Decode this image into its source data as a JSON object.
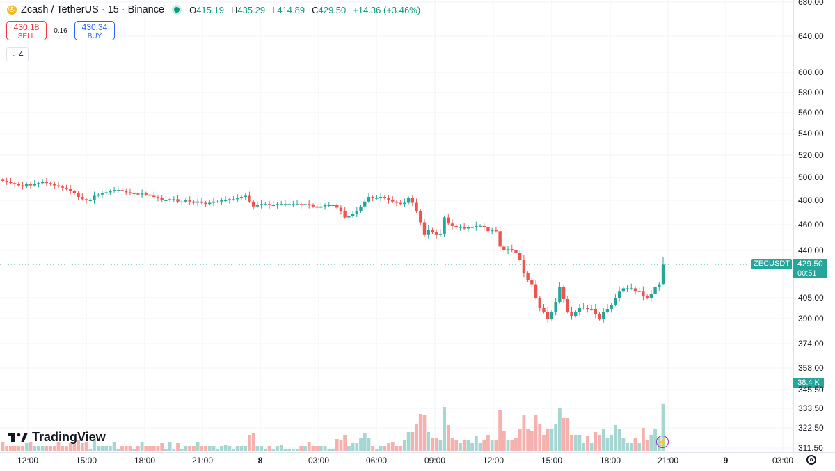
{
  "header": {
    "symbol_title": "Zcash / TetherUS · 15 · Binance",
    "open_label": "O",
    "open": "415.19",
    "high_label": "H",
    "high": "435.29",
    "low_label": "L",
    "low": "414.89",
    "close_label": "C",
    "close": "429.50",
    "change": "+14.36 (+3.46%)"
  },
  "trade": {
    "sell_price": "430.18",
    "sell_label": "SELL",
    "spread": "0.16",
    "buy_price": "430.34",
    "buy_label": "BUY"
  },
  "indicators_count": "4",
  "price_tag": {
    "name": "ZECUSDT",
    "price": "429.50",
    "countdown": "00:51"
  },
  "volume_tag": "38.4 K",
  "logo_text": "TradingView",
  "colors": {
    "up": "#26a69a",
    "down": "#ef5350",
    "up_volume": "#a5d6d2",
    "down_volume": "#f5b1ae",
    "grid": "#f0f3fa",
    "accent": "#089981"
  },
  "icons": {
    "flash": "lightning-icon",
    "settings": "settings-icon",
    "symbol": "zcash-logo-icon"
  },
  "chart_data": {
    "type": "candlestick",
    "price_scale_ticks": [
      "680.00",
      "640.00",
      "600.00",
      "580.00",
      "560.00",
      "540.00",
      "520.00",
      "500.00",
      "480.00",
      "460.00",
      "440.00",
      "405.00",
      "390.00",
      "374.00",
      "358.00",
      "345.50",
      "333.50",
      "322.50",
      "311.50"
    ],
    "time_ticks": [
      "12:00",
      "15:00",
      "18:00",
      "21:00",
      "8",
      "03:00",
      "06:00",
      "09:00",
      "12:00",
      "15:00",
      "18:00",
      "21:00",
      "9",
      "03:00"
    ],
    "series": [
      {
        "name": "ZECUSDT",
        "close": [
          497,
          496,
          495,
          494,
          493,
          492,
          494,
          493,
          494,
          495,
          496,
          495,
          494,
          493,
          492,
          491,
          490,
          488,
          486,
          483,
          481,
          480,
          480,
          484,
          485,
          486,
          487,
          488,
          489,
          489,
          488,
          487,
          486,
          486,
          485,
          486,
          485,
          484,
          483,
          482,
          480,
          480,
          481,
          481,
          479,
          479,
          480,
          479,
          478,
          479,
          478,
          477,
          478,
          479,
          479,
          480,
          480,
          481,
          481,
          482,
          483,
          484,
          479,
          475,
          476,
          477,
          477,
          476,
          476,
          477,
          477,
          477,
          477,
          477,
          477,
          476,
          477,
          476,
          475,
          474,
          475,
          476,
          476,
          476,
          474,
          471,
          466,
          467,
          469,
          471,
          475,
          479,
          483,
          482,
          482,
          483,
          482,
          480,
          479,
          478,
          477,
          478,
          482,
          478,
          471,
          462,
          452,
          456,
          454,
          452,
          453,
          466,
          461,
          459,
          458,
          458,
          457,
          458,
          458,
          459,
          459,
          458,
          455,
          456,
          455,
          443,
          440,
          441,
          440,
          438,
          433,
          423,
          418,
          415,
          405,
          398,
          395,
          390,
          395,
          402,
          413,
          404,
          395,
          392,
          395,
          398,
          398,
          397,
          397,
          393,
          390,
          395,
          397,
          400,
          405,
          410,
          412,
          412,
          412,
          410,
          410,
          406,
          405,
          408,
          413,
          415,
          429.5
        ]
      }
    ]
  }
}
